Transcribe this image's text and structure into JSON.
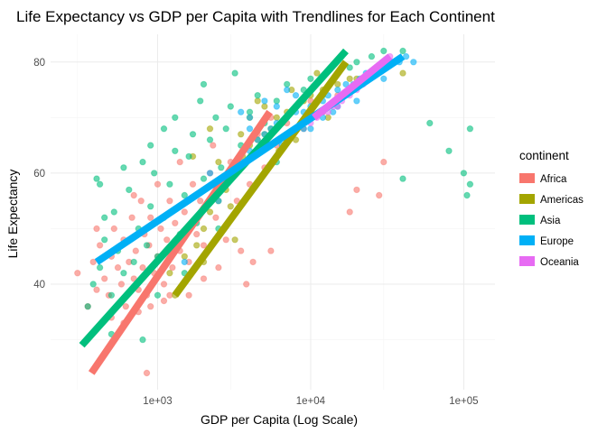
{
  "chart_data": {
    "type": "scatter",
    "title": "Life Expectancy vs GDP per Capita with Trendlines for Each Continent",
    "xlabel": "GDP per Capita (Log Scale)",
    "ylabel": "Life Expectancy",
    "x_scale": "log10",
    "xlim": [
      200,
      160000
    ],
    "ylim": [
      21,
      85
    ],
    "x_ticks": [
      {
        "value": 1000,
        "label": "1e+03"
      },
      {
        "value": 10000,
        "label": "1e+04"
      },
      {
        "value": 100000,
        "label": "1e+05"
      }
    ],
    "y_ticks": [
      {
        "value": 40,
        "label": "40"
      },
      {
        "value": 60,
        "label": "60"
      },
      {
        "value": 80,
        "label": "80"
      }
    ],
    "grid": true,
    "legend": {
      "title": "continent",
      "position": "right"
    },
    "series": [
      {
        "name": "Africa",
        "color": "#F8766D",
        "points": [
          [
            300,
            42
          ],
          [
            350,
            36
          ],
          [
            380,
            44
          ],
          [
            400,
            39
          ],
          [
            420,
            47
          ],
          [
            450,
            41
          ],
          [
            480,
            38
          ],
          [
            500,
            45
          ],
          [
            520,
            50
          ],
          [
            550,
            43
          ],
          [
            580,
            40
          ],
          [
            600,
            48
          ],
          [
            620,
            36
          ],
          [
            650,
            44
          ],
          [
            680,
            52
          ],
          [
            700,
            41
          ],
          [
            720,
            46
          ],
          [
            750,
            39
          ],
          [
            780,
            55
          ],
          [
            800,
            43
          ],
          [
            820,
            49
          ],
          [
            850,
            38
          ],
          [
            880,
            47
          ],
          [
            900,
            52
          ],
          [
            950,
            42
          ],
          [
            1000,
            45
          ],
          [
            1050,
            50
          ],
          [
            1100,
            40
          ],
          [
            1150,
            48
          ],
          [
            1200,
            55
          ],
          [
            1250,
            43
          ],
          [
            1300,
            51
          ],
          [
            1400,
            46
          ],
          [
            1500,
            53
          ],
          [
            1600,
            44
          ],
          [
            1700,
            58
          ],
          [
            1800,
            49
          ],
          [
            1900,
            55
          ],
          [
            2000,
            47
          ],
          [
            2200,
            60
          ],
          [
            2400,
            52
          ],
          [
            2600,
            57
          ],
          [
            2800,
            48
          ],
          [
            3000,
            62
          ],
          [
            3300,
            55
          ],
          [
            3600,
            64
          ],
          [
            4000,
            58
          ],
          [
            4500,
            67
          ],
          [
            5000,
            61
          ],
          [
            5500,
            70
          ],
          [
            6000,
            65
          ],
          [
            7000,
            69
          ],
          [
            8000,
            72
          ],
          [
            9000,
            68
          ],
          [
            10000,
            73
          ],
          [
            12000,
            71
          ],
          [
            15000,
            74
          ],
          [
            500,
            34
          ],
          [
            600,
            33
          ],
          [
            750,
            35
          ],
          [
            900,
            36
          ],
          [
            1100,
            37
          ],
          [
            850,
            24
          ],
          [
            1600,
            38
          ],
          [
            2500,
            43
          ],
          [
            3500,
            46
          ],
          [
            20000,
            57
          ],
          [
            18000,
            53
          ],
          [
            30000,
            62
          ],
          [
            28000,
            56
          ],
          [
            2000,
            41
          ],
          [
            1200,
            38
          ],
          [
            700,
            56
          ],
          [
            400,
            50
          ],
          [
            1000,
            58
          ],
          [
            1400,
            62
          ],
          [
            2300,
            65
          ],
          [
            4200,
            44
          ],
          [
            3800,
            40
          ],
          [
            5500,
            46
          ]
        ],
        "trendline": {
          "x": [
            370,
            5400
          ],
          "y": [
            24,
            71
          ]
        }
      },
      {
        "name": "Americas",
        "color": "#A3A500",
        "points": [
          [
            1500,
            45
          ],
          [
            1800,
            47
          ],
          [
            2000,
            50
          ],
          [
            2200,
            53
          ],
          [
            2500,
            55
          ],
          [
            2800,
            57
          ],
          [
            3000,
            59
          ],
          [
            3300,
            61
          ],
          [
            3600,
            63
          ],
          [
            4000,
            65
          ],
          [
            4500,
            66
          ],
          [
            5000,
            67
          ],
          [
            5500,
            68
          ],
          [
            6000,
            70
          ],
          [
            6500,
            69
          ],
          [
            7000,
            71
          ],
          [
            8000,
            72
          ],
          [
            9000,
            73
          ],
          [
            10000,
            74
          ],
          [
            12000,
            75
          ],
          [
            15000,
            76
          ],
          [
            18000,
            77
          ],
          [
            20000,
            77
          ],
          [
            25000,
            78
          ],
          [
            30000,
            79
          ],
          [
            35000,
            80
          ],
          [
            1200,
            42
          ],
          [
            2000,
            44
          ],
          [
            3000,
            54
          ],
          [
            4000,
            70
          ],
          [
            5000,
            72
          ],
          [
            8000,
            66
          ],
          [
            13000,
            70
          ],
          [
            2500,
            62
          ],
          [
            1300,
            38
          ],
          [
            1700,
            63
          ],
          [
            4500,
            73
          ],
          [
            7500,
            75
          ],
          [
            11000,
            78
          ],
          [
            16000,
            79
          ],
          [
            2200,
            68
          ],
          [
            3500,
            67
          ],
          [
            2000,
            57
          ],
          [
            3200,
            48
          ],
          [
            6200,
            64
          ],
          [
            40000,
            78
          ]
        ],
        "trendline": {
          "x": [
            1300,
            17000
          ],
          "y": [
            38,
            80
          ]
        }
      },
      {
        "name": "Asia",
        "color": "#00BF7D",
        "points": [
          [
            350,
            36
          ],
          [
            380,
            40
          ],
          [
            400,
            59
          ],
          [
            420,
            43
          ],
          [
            450,
            48
          ],
          [
            500,
            38
          ],
          [
            520,
            53
          ],
          [
            550,
            46
          ],
          [
            600,
            42
          ],
          [
            650,
            57
          ],
          [
            700,
            44
          ],
          [
            750,
            50
          ],
          [
            800,
            62
          ],
          [
            850,
            47
          ],
          [
            900,
            54
          ],
          [
            950,
            60
          ],
          [
            1000,
            45
          ],
          [
            1100,
            52
          ],
          [
            1200,
            58
          ],
          [
            1300,
            64
          ],
          [
            1400,
            49
          ],
          [
            1500,
            56
          ],
          [
            1600,
            63
          ],
          [
            1700,
            67
          ],
          [
            1800,
            51
          ],
          [
            2000,
            59
          ],
          [
            2200,
            66
          ],
          [
            2400,
            70
          ],
          [
            2600,
            61
          ],
          [
            2800,
            68
          ],
          [
            3000,
            72
          ],
          [
            3500,
            65
          ],
          [
            4000,
            71
          ],
          [
            4500,
            74
          ],
          [
            5000,
            69
          ],
          [
            6000,
            73
          ],
          [
            7000,
            76
          ],
          [
            8000,
            72
          ],
          [
            9000,
            75
          ],
          [
            10000,
            77
          ],
          [
            12000,
            74
          ],
          [
            15000,
            78
          ],
          [
            18000,
            79
          ],
          [
            20000,
            80
          ],
          [
            25000,
            81
          ],
          [
            30000,
            82
          ],
          [
            40000,
            82
          ],
          [
            60000,
            69
          ],
          [
            80000,
            64
          ],
          [
            100000,
            60
          ],
          [
            110000,
            58
          ],
          [
            105000,
            56
          ],
          [
            110000,
            68
          ],
          [
            40000,
            59
          ],
          [
            420,
            58
          ],
          [
            600,
            61
          ],
          [
            900,
            65
          ],
          [
            1300,
            70
          ],
          [
            700,
            35
          ],
          [
            500,
            31
          ],
          [
            800,
            30
          ],
          [
            1000,
            38
          ],
          [
            1500,
            42
          ],
          [
            2500,
            50
          ],
          [
            3200,
            78
          ],
          [
            2000,
            76
          ],
          [
            6000,
            62
          ],
          [
            450,
            52
          ],
          [
            1100,
            68
          ],
          [
            1900,
            73
          ]
        ],
        "trendline": {
          "x": [
            320,
            17000
          ],
          "y": [
            29,
            82
          ]
        }
      },
      {
        "name": "Europe",
        "color": "#00B0F6",
        "points": [
          [
            2500,
            55
          ],
          [
            3000,
            60
          ],
          [
            3500,
            62
          ],
          [
            4000,
            64
          ],
          [
            4500,
            66
          ],
          [
            5000,
            67
          ],
          [
            5500,
            68
          ],
          [
            6000,
            69
          ],
          [
            7000,
            70
          ],
          [
            8000,
            71
          ],
          [
            9000,
            71
          ],
          [
            10000,
            72
          ],
          [
            11000,
            73
          ],
          [
            12000,
            73
          ],
          [
            13000,
            74
          ],
          [
            15000,
            75
          ],
          [
            17000,
            76
          ],
          [
            19000,
            76
          ],
          [
            21000,
            77
          ],
          [
            23000,
            78
          ],
          [
            25000,
            78
          ],
          [
            28000,
            79
          ],
          [
            31000,
            79
          ],
          [
            34000,
            80
          ],
          [
            38000,
            80
          ],
          [
            42000,
            81
          ],
          [
            47000,
            80
          ],
          [
            4000,
            70
          ],
          [
            6000,
            72
          ],
          [
            8000,
            74
          ],
          [
            10000,
            68
          ],
          [
            12000,
            70
          ],
          [
            15000,
            72
          ],
          [
            3500,
            71
          ],
          [
            5000,
            73
          ],
          [
            7000,
            75
          ],
          [
            20000,
            73
          ],
          [
            30000,
            77
          ],
          [
            1500,
            44
          ],
          [
            2200,
            60
          ],
          [
            4000,
            68
          ],
          [
            6500,
            65
          ],
          [
            9000,
            68
          ],
          [
            14000,
            71
          ]
        ],
        "trendline": {
          "x": [
            400,
            40000
          ],
          "y": [
            44,
            81
          ]
        }
      },
      {
        "name": "Oceania",
        "color": "#E76BF3",
        "points": [
          [
            10000,
            69
          ],
          [
            11000,
            70
          ],
          [
            12000,
            71
          ],
          [
            13000,
            71
          ],
          [
            14000,
            72
          ],
          [
            15000,
            72
          ],
          [
            16000,
            73
          ],
          [
            18000,
            74
          ],
          [
            20000,
            75
          ],
          [
            22000,
            76
          ],
          [
            24000,
            77
          ],
          [
            26000,
            78
          ],
          [
            28000,
            79
          ],
          [
            30000,
            80
          ],
          [
            33000,
            81
          ]
        ],
        "trendline": {
          "x": [
            10500,
            33000
          ],
          "y": [
            70,
            81
          ]
        }
      }
    ]
  }
}
